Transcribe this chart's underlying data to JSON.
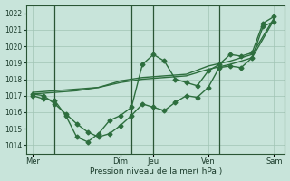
{
  "background_color": "#c8e4da",
  "plot_bg_color": "#c8e4da",
  "grid_color": "#a0c4b4",
  "line_color": "#2d6e3e",
  "marker_color": "#2d6e3e",
  "xlabel": "Pression niveau de la mer( hPa )",
  "ylim": [
    1013.5,
    1022.5
  ],
  "yticks": [
    1014,
    1015,
    1016,
    1017,
    1018,
    1019,
    1020,
    1021,
    1022
  ],
  "day_labels": [
    "Mer",
    "Dim",
    "Jeu",
    "Ven",
    "Sam"
  ],
  "day_positions": [
    0.0,
    4.0,
    5.5,
    8.0,
    11.0
  ],
  "vline_x": [
    1.0,
    4.5,
    5.5,
    8.5
  ],
  "xlim": [
    -0.3,
    11.5
  ],
  "line1_x": [
    0.0,
    0.5,
    1.0,
    1.5,
    2.0,
    2.5,
    3.0,
    3.5,
    4.0,
    4.5,
    5.0,
    5.5,
    6.0,
    6.5,
    7.0,
    7.5,
    8.0,
    8.5,
    9.0,
    9.5,
    10.0,
    10.5,
    11.0
  ],
  "line1_y": [
    1017.1,
    1017.0,
    1016.5,
    1015.9,
    1015.3,
    1014.8,
    1014.5,
    1014.7,
    1015.2,
    1015.8,
    1016.5,
    1016.3,
    1016.1,
    1016.6,
    1017.0,
    1016.9,
    1017.5,
    1018.7,
    1018.8,
    1018.7,
    1019.3,
    1021.2,
    1021.5
  ],
  "line2_x": [
    0.0,
    1.0,
    2.0,
    3.0,
    4.0,
    5.0,
    6.0,
    7.0,
    8.0,
    9.0,
    10.0,
    11.0
  ],
  "line2_y": [
    1017.2,
    1017.3,
    1017.4,
    1017.5,
    1017.9,
    1018.1,
    1018.2,
    1018.3,
    1018.8,
    1019.1,
    1019.5,
    1021.7
  ],
  "line3_x": [
    0.0,
    1.0,
    2.0,
    3.0,
    4.0,
    5.0,
    6.0,
    7.0,
    8.0,
    9.0,
    10.0,
    11.0
  ],
  "line3_y": [
    1017.1,
    1017.2,
    1017.3,
    1017.5,
    1017.8,
    1018.0,
    1018.1,
    1018.2,
    1018.6,
    1018.9,
    1019.3,
    1021.6
  ],
  "line4_x": [
    0.0,
    0.5,
    1.0,
    1.5,
    2.0,
    2.5,
    3.0,
    3.5,
    4.0,
    4.5,
    5.0,
    5.5,
    6.0,
    6.5,
    7.0,
    7.5,
    8.0,
    8.5,
    9.0,
    9.5,
    10.0,
    10.5,
    11.0
  ],
  "line4_y": [
    1017.0,
    1016.8,
    1016.7,
    1015.8,
    1014.5,
    1014.2,
    1014.7,
    1015.5,
    1015.8,
    1016.3,
    1018.9,
    1019.5,
    1019.1,
    1018.0,
    1017.8,
    1017.6,
    1018.5,
    1018.9,
    1019.5,
    1019.4,
    1019.6,
    1021.4,
    1021.8
  ]
}
